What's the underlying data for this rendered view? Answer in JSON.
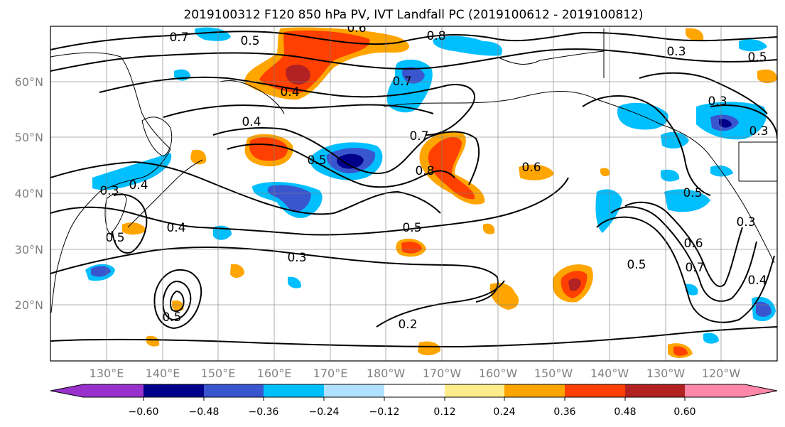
{
  "title": "2019100312 F120 850 hPa PV, IVT Landfall PC (2019100612 - 2019100812)",
  "lat_labels": [
    "60°N",
    "50°N",
    "40°N",
    "30°N",
    "20°N"
  ],
  "lon_labels": [
    "130°E",
    "140°E",
    "150°E",
    "160°E",
    "170°E",
    "180°W",
    "170°W",
    "160°W",
    "150°W",
    "140°W",
    "130°W",
    "120°W"
  ],
  "colorbar": {
    "colors": [
      "#9932cc",
      "#00008b",
      "#3a56cf",
      "#00bfff",
      "#b0e2ff",
      "#ffffff",
      "#ffec8b",
      "#ffa500",
      "#ff4000",
      "#b22222",
      "#ff88aa"
    ],
    "ticks": [
      "−0.60",
      "−0.48",
      "−0.36",
      "−0.24",
      "−0.12",
      "0.12",
      "0.24",
      "0.36",
      "0.48",
      "0.60"
    ]
  },
  "contour_labels": [
    "0.7",
    "0.5",
    "0.6",
    "0.8",
    "0.7",
    "0.3",
    "0.5",
    "0.4",
    "0.3",
    "0.4",
    "0.5",
    "0.7",
    "0.8",
    "0.6",
    "0.3",
    "0.4",
    "0.4",
    "0.5",
    "0.3",
    "0.5",
    "0.6",
    "0.7",
    "0.5",
    "0.3",
    "0.4",
    "0.5",
    "0.2",
    "0.5",
    "0.3"
  ]
}
